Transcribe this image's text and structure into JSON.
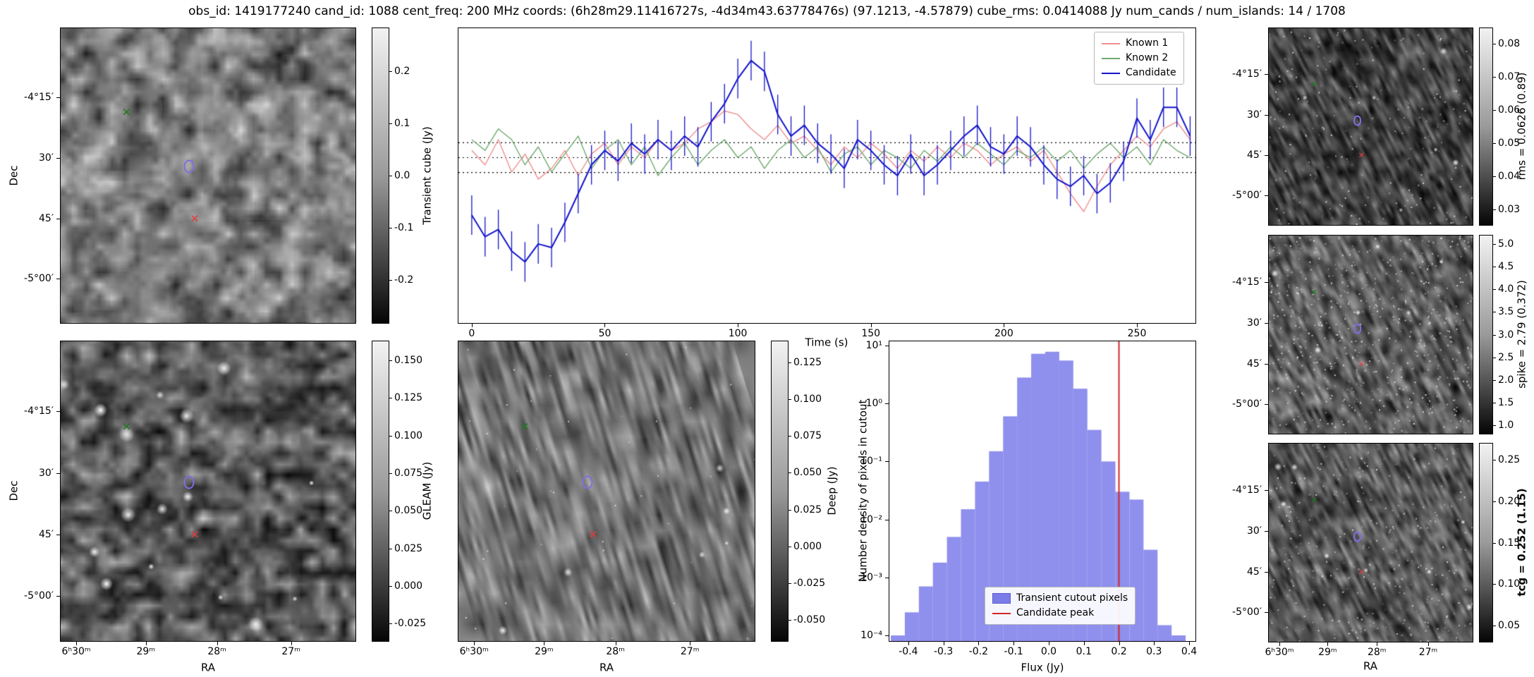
{
  "title": "obs_id: 1419177240 cand_id: 1088 cent_freq: 200 MHz coords: (6h28m29.11416727s, -4d34m43.63778476s) (97.1213, -4.57879) cube_rms: 0.0414088 Jy num_cands / num_islands: 14 / 1708",
  "axis_labels": {
    "dec": "Dec",
    "ra": "RA",
    "time": "Time (s)",
    "flux": "Flux (Jy)"
  },
  "markers": [
    {
      "id": "known-2-position",
      "shape": "x",
      "color": "#1f7a1f",
      "fx": 0.225,
      "fy": 0.285
    },
    {
      "id": "candidate-position",
      "shape": "ellipse",
      "color": "#7d6fe0",
      "fx": 0.435,
      "fy": 0.47
    },
    {
      "id": "known-1-position",
      "shape": "x",
      "color": "#e23b3b",
      "fx": 0.455,
      "fy": 0.645
    }
  ],
  "panels": {
    "transient": {
      "dec_ticks": [
        "-4°15′",
        "30′",
        "45′",
        "-5°00′"
      ],
      "colorbar": {
        "label": "Transient cube (Jy)",
        "ticks": [
          "0.2",
          "0.1",
          "0.0",
          "-0.1",
          "-0.2"
        ]
      }
    },
    "gleam": {
      "dec_ticks": [
        "-4°15′",
        "30′",
        "45′",
        "-5°00′"
      ],
      "ra_ticks": [
        "6ʰ30ᵐ",
        "29ᵐ",
        "28ᵐ",
        "27ᵐ"
      ],
      "colorbar": {
        "label": "GLEAM (Jy)",
        "ticks": [
          "0.150",
          "0.125",
          "0.100",
          "0.075",
          "0.050",
          "0.025",
          "0.000",
          "-0.025"
        ]
      }
    },
    "deep": {
      "ra_ticks": [
        "6ʰ30ᵐ",
        "29ᵐ",
        "28ᵐ",
        "27ᵐ"
      ],
      "colorbar": {
        "label": "Deep (Jy)",
        "ticks": [
          "0.125",
          "0.100",
          "0.075",
          "0.050",
          "0.025",
          "0.000",
          "-0.025",
          "-0.050"
        ]
      }
    },
    "rms": {
      "dec_ticks": [
        "-4°15′",
        "30′",
        "45′",
        "-5°00′"
      ],
      "colorbar": {
        "label": "rms = 0.0626 (0.89)",
        "ticks": [
          "0.08",
          "0.07",
          "0.06",
          "0.05",
          "0.04",
          "0.03"
        ]
      }
    },
    "spike": {
      "dec_ticks": [
        "-4°15′",
        "30′",
        "45′",
        "-5°00′"
      ],
      "colorbar": {
        "label": "spike = 2.79 (0.372)",
        "ticks": [
          "5.0",
          "4.5",
          "4.0",
          "3.5",
          "3.0",
          "2.5",
          "2.0",
          "1.5",
          "1.0"
        ]
      }
    },
    "tcg": {
      "dec_ticks": [
        "-4°15′",
        "30′",
        "45′",
        "-5°00′"
      ],
      "ra_ticks": [
        "6ʰ30ᵐ",
        "29ᵐ",
        "28ᵐ",
        "27ᵐ"
      ],
      "colorbar": {
        "label": "tcg = 0.252 (1.15)",
        "ticks": [
          "0.25",
          "0.20",
          "0.15",
          "0.10",
          "0.05"
        ]
      }
    }
  },
  "chart_data": [
    {
      "id": "lightcurve",
      "type": "line",
      "xlabel": "Time (s)",
      "xlim": [
        -5,
        272
      ],
      "ylim": [
        -0.46,
        0.36
      ],
      "xticks": [
        "0",
        "50",
        "100",
        "150",
        "200",
        "250"
      ],
      "hlines": [
        0.0414,
        0.0,
        -0.0414
      ],
      "legend_position": "upper right",
      "x": [
        0,
        5,
        10,
        15,
        20,
        25,
        30,
        35,
        40,
        45,
        50,
        55,
        60,
        65,
        70,
        75,
        80,
        85,
        90,
        95,
        100,
        105,
        110,
        115,
        120,
        125,
        130,
        135,
        140,
        145,
        150,
        155,
        160,
        165,
        170,
        175,
        180,
        185,
        190,
        195,
        200,
        205,
        210,
        215,
        220,
        225,
        230,
        235,
        240,
        245,
        250,
        255,
        260,
        265,
        270
      ],
      "series": [
        {
          "name": "Known 1",
          "color": "#f08f8f",
          "values": [
            0.02,
            -0.02,
            0.05,
            -0.04,
            0.01,
            -0.06,
            -0.03,
            0.02,
            -0.05,
            0.01,
            0.04,
            -0.02,
            0.03,
            0.0,
            0.05,
            0.02,
            0.04,
            0.08,
            0.1,
            0.13,
            0.12,
            0.08,
            0.05,
            0.09,
            0.04,
            0.06,
            0.02,
            -0.02,
            0.03,
            0.0,
            0.04,
            0.01,
            -0.03,
            0.02,
            -0.01,
            0.03,
            0.0,
            0.04,
            0.02,
            -0.02,
            0.01,
            0.03,
            -0.01,
            0.02,
            -0.04,
            -0.1,
            -0.15,
            -0.08,
            -0.02,
            0.02,
            0.06,
            0.03,
            0.08,
            0.1,
            0.05
          ]
        },
        {
          "name": "Known 2",
          "color": "#6faa6f",
          "values": [
            0.05,
            0.02,
            0.08,
            0.05,
            -0.02,
            0.03,
            -0.04,
            0.01,
            0.06,
            -0.03,
            0.02,
            0.05,
            -0.02,
            0.03,
            -0.05,
            0.0,
            0.04,
            -0.02,
            0.02,
            0.05,
            0.0,
            0.03,
            -0.03,
            0.02,
            0.05,
            0.0,
            0.03,
            -0.04,
            0.01,
            0.03,
            -0.02,
            0.02,
            0.0,
            -0.03,
            0.02,
            -0.01,
            0.03,
            0.0,
            0.04,
            0.01,
            -0.02,
            0.02,
            0.0,
            0.03,
            -0.01,
            0.02,
            -0.03,
            0.01,
            0.04,
            0.0,
            0.03,
            -0.02,
            0.05,
            0.02,
            0.0
          ]
        },
        {
          "name": "Candidate",
          "color": "#1414cc",
          "yerr": 0.055,
          "values": [
            -0.16,
            -0.22,
            -0.2,
            -0.26,
            -0.29,
            -0.24,
            -0.25,
            -0.18,
            -0.1,
            -0.02,
            0.02,
            -0.01,
            0.04,
            0.01,
            0.05,
            0.02,
            0.06,
            0.03,
            0.1,
            0.15,
            0.22,
            0.27,
            0.24,
            0.12,
            0.06,
            0.09,
            0.04,
            0.01,
            -0.03,
            0.05,
            0.02,
            -0.02,
            -0.05,
            0.01,
            -0.05,
            -0.02,
            0.02,
            0.06,
            0.09,
            0.03,
            0.01,
            0.06,
            0.03,
            -0.02,
            -0.06,
            -0.08,
            -0.05,
            -0.1,
            -0.07,
            -0.01,
            0.11,
            0.05,
            0.14,
            0.14,
            0.06
          ]
        }
      ]
    },
    {
      "id": "flux-histogram",
      "type": "bar",
      "xlabel": "Flux (Jy)",
      "ylabel": "Number density of pixels in cutout",
      "ylog": true,
      "xlim": [
        -0.454,
        0.418
      ],
      "ylim": [
        8e-05,
        11.8
      ],
      "xticks": [
        "-0.4",
        "-0.3",
        "-0.2",
        "-0.1",
        "0.0",
        "0.1",
        "0.2",
        "0.3",
        "0.4"
      ],
      "yticks": [
        "10¹",
        "10⁰",
        "10⁻¹",
        "10⁻²",
        "10⁻³",
        "10⁻⁴"
      ],
      "bar_color": "#7b7bea",
      "bar_label": "Transient cutout pixels",
      "vline": {
        "x": 0.2,
        "color": "#d62728",
        "label": "Candidate peak"
      },
      "bin_centers": [
        -0.43,
        -0.39,
        -0.35,
        -0.31,
        -0.27,
        -0.23,
        -0.19,
        -0.15,
        -0.11,
        -0.07,
        -0.03,
        0.01,
        0.05,
        0.09,
        0.13,
        0.17,
        0.21,
        0.25,
        0.29,
        0.33,
        0.37
      ],
      "densities": [
        0.0001,
        0.00025,
        0.0007,
        0.0018,
        0.005,
        0.015,
        0.045,
        0.15,
        0.6,
        2.8,
        7.2,
        7.8,
        5.5,
        1.8,
        0.35,
        0.1,
        0.03,
        0.022,
        0.003,
        0.00015,
        0.0001
      ]
    }
  ]
}
